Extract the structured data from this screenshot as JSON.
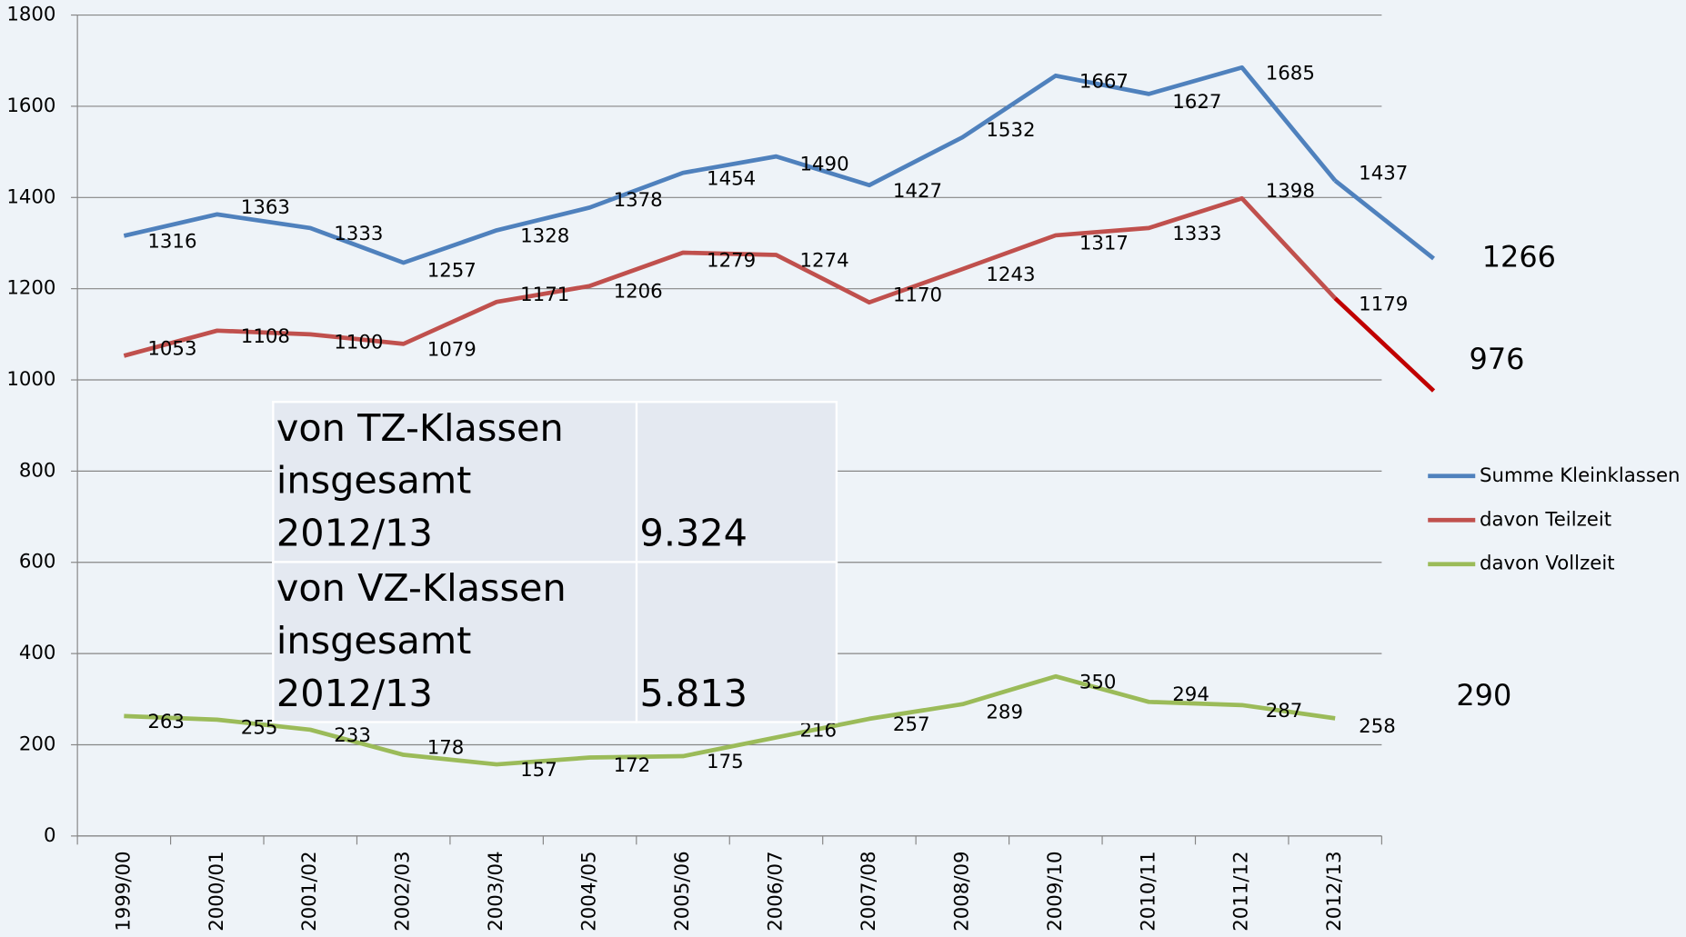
{
  "chart_data": {
    "type": "line",
    "categories": [
      "1999/00",
      "2000/01",
      "2001/02",
      "2002/03",
      "2003/04",
      "2004/05",
      "2005/06",
      "2006/07",
      "2007/08",
      "2008/09",
      "2009/10",
      "2010/11",
      "2011/12",
      "2012/13"
    ],
    "series": [
      {
        "name": "Summe Kleinklassen",
        "color": "#4f81bd",
        "values": [
          1316,
          1363,
          1333,
          1257,
          1328,
          1378,
          1454,
          1490,
          1427,
          1532,
          1667,
          1627,
          1685,
          1437
        ],
        "projection": 1266,
        "projection_color": "#4f81bd",
        "projection_line": true
      },
      {
        "name": "davon Teilzeit",
        "color": "#c0504d",
        "values": [
          1053,
          1108,
          1100,
          1079,
          1171,
          1206,
          1279,
          1274,
          1170,
          1243,
          1317,
          1333,
          1398,
          1179
        ],
        "projection": 976,
        "projection_color": "#c00000",
        "projection_line": true
      },
      {
        "name": "davon Vollzeit",
        "color": "#9bbb59",
        "values": [
          263,
          255,
          233,
          178,
          157,
          172,
          175,
          216,
          257,
          289,
          350,
          294,
          287,
          258
        ],
        "projection": 290,
        "projection_color": "#9bbb59",
        "projection_line": false
      }
    ],
    "ylim": [
      0,
      1800
    ],
    "yticks": [
      0,
      200,
      400,
      600,
      800,
      1000,
      1200,
      1400,
      1600,
      1800
    ],
    "grid": true,
    "legend": "right"
  },
  "table": {
    "rows": [
      [
        "von TZ-Klassen insgesamt 2012/13",
        "9.324"
      ],
      [
        "von VZ-Klassen insgesamt 2012/13",
        "5.813"
      ]
    ]
  }
}
